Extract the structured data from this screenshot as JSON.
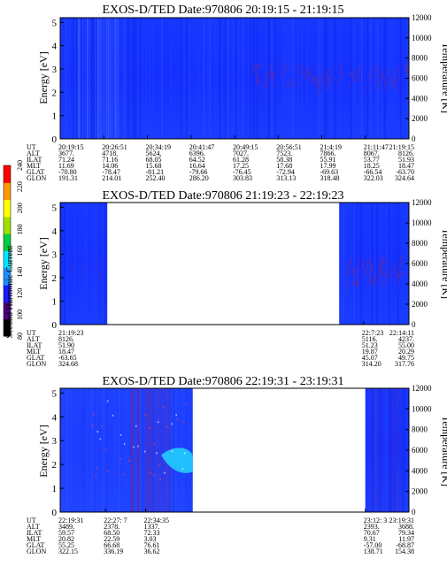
{
  "chart_data": [
    {
      "type": "heatmap",
      "title": "EXOS-D/TED   Date:970806  20:19:15 - 21:19:15",
      "ylabel": "Energy [eV]",
      "ylabel_right": "Temperature [K]",
      "ylim": [
        0,
        5.2
      ],
      "ylim_right": [
        0,
        12000
      ],
      "yticks": [
        "0",
        "1",
        "2",
        "3",
        "4",
        "5"
      ],
      "yticks_right": [
        "0",
        "2000",
        "4000",
        "6000",
        "8000",
        "10000",
        "12000"
      ],
      "x_range": [
        "20:19:15",
        "21:19:15"
      ],
      "data_coverage": [
        {
          "from": 0.0,
          "to": 1.0
        }
      ],
      "orbit_table": {
        "row_labels": [
          "UT",
          "ALT",
          "ILAT",
          "MLT",
          "GLAT",
          "GLON"
        ],
        "columns": [
          {
            "pos": 0.0,
            "values": [
              "20:19:15",
              "3677.",
              "71.24",
              "11.69",
              "-70.80",
              "191.31"
            ]
          },
          {
            "pos": 0.125,
            "values": [
              "20:26:51",
              "4718.",
              "71.16",
              "14.06",
              "-78.47",
              "214.01"
            ]
          },
          {
            "pos": 0.25,
            "values": [
              "20:34:19",
              "5624.",
              "68.05",
              "15.68",
              "-81.21",
              "252.40"
            ]
          },
          {
            "pos": 0.375,
            "values": [
              "20:41:47",
              "6396.",
              "64.52",
              "16.64",
              "-79.66",
              "286.20"
            ]
          },
          {
            "pos": 0.5,
            "values": [
              "20:49:15",
              "7027.",
              "61.28",
              "17.25",
              "-76.45",
              "303.83"
            ]
          },
          {
            "pos": 0.625,
            "values": [
              "20:56:51",
              "7523.",
              "58.38",
              "17.68",
              "-72.94",
              "313.13"
            ]
          },
          {
            "pos": 0.75,
            "values": [
              "21:4:19",
              "7866.",
              "55.91",
              "17.99",
              "-69.63",
              "318.48"
            ]
          },
          {
            "pos": 0.875,
            "values": [
              "21:11:47",
              "8067.",
              "53.77",
              "18.25",
              "-66.54",
              "322.03"
            ]
          },
          {
            "pos": 1.0,
            "values": [
              "21:19:15",
              "8126.",
              "51.93",
              "18.47",
              "-63.70",
              "324.64"
            ]
          }
        ]
      }
    },
    {
      "type": "heatmap",
      "title": "EXOS-D/TED   Date:970806  21:19:23 - 22:19:23",
      "ylabel": "Energy [eV]",
      "ylabel_right": "Temperature [K]",
      "ylim": [
        0,
        5.2
      ],
      "ylim_right": [
        0,
        12000
      ],
      "yticks": [
        "0",
        "1",
        "2",
        "3",
        "4",
        "5"
      ],
      "yticks_right": [
        "0",
        "2000",
        "4000",
        "6000",
        "8000",
        "10000",
        "12000"
      ],
      "x_range": [
        "21:19:23",
        "22:19:23"
      ],
      "data_coverage": [
        {
          "from": 0.0,
          "to": 0.135
        },
        {
          "from": 0.8,
          "to": 1.0
        }
      ],
      "orbit_table": {
        "row_labels": [
          "UT",
          "ALT",
          "ILAT",
          "MLT",
          "GLAT",
          "GLON"
        ],
        "columns": [
          {
            "pos": 0.0,
            "values": [
              "21:19:23",
              "8126.",
              "51.90",
              "18.47",
              "-63.65",
              "324.68"
            ]
          },
          {
            "pos": 0.87,
            "values": [
              "22:7:23",
              "5116.",
              "51.23",
              "19.87",
              "45.07",
              "314.20"
            ]
          },
          {
            "pos": 1.0,
            "values": [
              "22:14:11",
              "4237.",
              "55.00",
              "20.29",
              "49.75",
              "317.76"
            ]
          }
        ]
      }
    },
    {
      "type": "heatmap",
      "title": "EXOS-D/TED   Date:970806  22:19:31 - 23:19:31",
      "ylabel": "Energy [eV]",
      "ylabel_right": "Temperature [K]",
      "ylim": [
        0,
        5.2
      ],
      "ylim_right": [
        0,
        12000
      ],
      "yticks": [
        "0",
        "1",
        "2",
        "3",
        "4",
        "5"
      ],
      "yticks_right": [
        "0",
        "2000",
        "4000",
        "6000",
        "8000",
        "10000",
        "12000"
      ],
      "x_range": [
        "22:19:31",
        "23:19:31"
      ],
      "data_coverage": [
        {
          "from": 0.0,
          "to": 0.38
        },
        {
          "from": 0.875,
          "to": 1.0
        }
      ],
      "orbit_table": {
        "row_labels": [
          "UT",
          "ALT",
          "ILAT",
          "MLT",
          "GLAT",
          "GLON"
        ],
        "columns": [
          {
            "pos": 0.0,
            "values": [
              "22:19:31",
              "3489.",
              "59.57",
              "20.82",
              "55.25",
              "322.15"
            ]
          },
          {
            "pos": 0.13,
            "values": [
              "22:27: 7",
              "2378.",
              "68.50",
              "22.59",
              "66.68",
              "336.19"
            ]
          },
          {
            "pos": 0.245,
            "values": [
              "22:34:35",
              "1337.",
              "72.33",
              "3.03",
              "76.61",
              "36.62"
            ]
          },
          {
            "pos": 0.875,
            "values": [
              "23:12: 3",
              "2393.",
              "70.67",
              "9.31",
              "-57.00",
              "138.71"
            ]
          },
          {
            "pos": 1.0,
            "values": [
              "23:19:31",
              "3688.",
              "79.34",
              "11.97",
              "-68.87",
              "154.38"
            ]
          }
        ]
      }
    }
  ],
  "colorbar": {
    "label": "Second Harmonic Current",
    "ticks": [
      "80",
      "100",
      "120",
      "140",
      "160",
      "180",
      "200",
      "220",
      "240"
    ],
    "colors": [
      "#000000",
      "#4b0082",
      "#1a1aff",
      "#1e90ff",
      "#00e5ff",
      "#00cc44",
      "#a0e000",
      "#ffff00",
      "#ff9900",
      "#ff0000"
    ]
  }
}
